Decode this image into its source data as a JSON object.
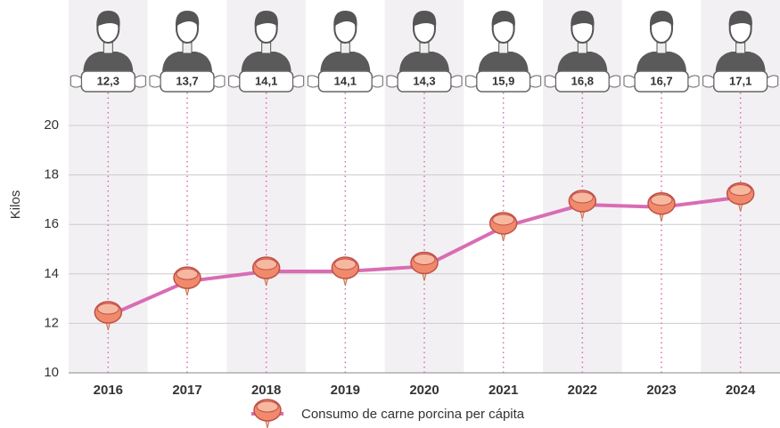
{
  "chart_data": {
    "type": "line",
    "categories": [
      "2016",
      "2017",
      "2018",
      "2019",
      "2020",
      "2021",
      "2022",
      "2023",
      "2024"
    ],
    "series": [
      {
        "name": "Consumo de carne porcina per cápita",
        "color": "#d86db4",
        "values": [
          12.3,
          13.7,
          14.1,
          14.1,
          14.3,
          15.9,
          16.8,
          16.7,
          17.1
        ],
        "value_labels": [
          "12,3",
          "13,7",
          "14,1",
          "14,1",
          "14,3",
          "15,9",
          "16,8",
          "16,7",
          "17,1"
        ]
      }
    ],
    "ylabel": "Kilos",
    "ylim": [
      10,
      20
    ],
    "yticks": [
      10,
      12,
      14,
      16,
      18,
      20
    ],
    "grid": true
  }
}
